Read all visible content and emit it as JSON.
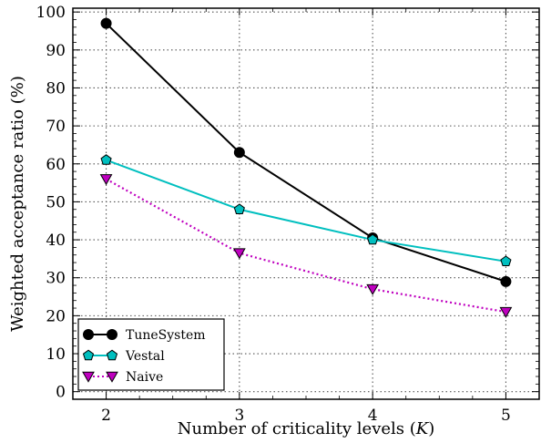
{
  "chart_data": {
    "type": "line",
    "title": "",
    "xlabel": "Number of criticality levels (K)",
    "xlabel_parts": {
      "text": "Number of criticality levels (",
      "var": "K",
      "close": ")"
    },
    "ylabel": "Weighted acceptance ratio (%)",
    "x": [
      2,
      3,
      4,
      5
    ],
    "xlim": [
      1.75,
      5.25
    ],
    "ylim": [
      -2,
      101
    ],
    "yticks": [
      0,
      10,
      20,
      30,
      40,
      50,
      60,
      70,
      80,
      90,
      100
    ],
    "xticks": [
      2,
      3,
      4,
      5
    ],
    "grid": true,
    "legend_position": "bottom-left",
    "series": [
      {
        "name": "TuneSystem",
        "values": [
          97,
          63,
          40.5,
          29
        ],
        "color": "#000000",
        "marker": "circle",
        "line": "solid"
      },
      {
        "name": "Vestal",
        "values": [
          61,
          48,
          40,
          34.3
        ],
        "color": "#00bfbf",
        "marker": "pentagon",
        "line": "solid"
      },
      {
        "name": "Naive",
        "values": [
          56,
          36.5,
          27,
          21
        ],
        "color": "#bf00bf",
        "marker": "triangle-down",
        "line": "dotted"
      }
    ]
  }
}
